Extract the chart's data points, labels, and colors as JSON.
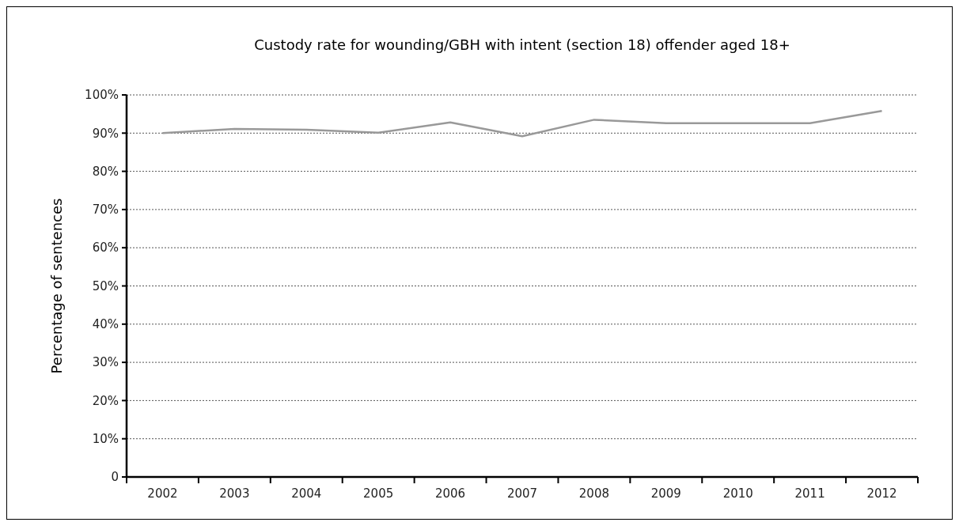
{
  "chart_data": {
    "type": "line",
    "title": "Custody rate for wounding/GBH with intent (section 18) offender aged 18+",
    "ylabel": "Percentage of sentences",
    "categories": [
      "2002",
      "2003",
      "2004",
      "2005",
      "2006",
      "2007",
      "2008",
      "2009",
      "2010",
      "2011",
      "2012"
    ],
    "series": [
      {
        "color": "#999999",
        "values": [
          90.0,
          91.1,
          90.9,
          90.1,
          92.8,
          89.2,
          93.5,
          92.6,
          92.6,
          92.6,
          95.8
        ]
      }
    ],
    "ylim": [
      0,
      100
    ],
    "yticks": [
      {
        "value": 0,
        "label": "0"
      },
      {
        "value": 10,
        "label": "10%"
      },
      {
        "value": 20,
        "label": "20%"
      },
      {
        "value": 30,
        "label": "30%"
      },
      {
        "value": 40,
        "label": "40%"
      },
      {
        "value": 50,
        "label": "50%"
      },
      {
        "value": 60,
        "label": "60%"
      },
      {
        "value": 70,
        "label": "70%"
      },
      {
        "value": 80,
        "label": "80%"
      },
      {
        "value": 90,
        "label": "90%"
      },
      {
        "value": 100,
        "label": "100%"
      }
    ],
    "grid": "y",
    "marker": "none",
    "line_style": "solid"
  }
}
